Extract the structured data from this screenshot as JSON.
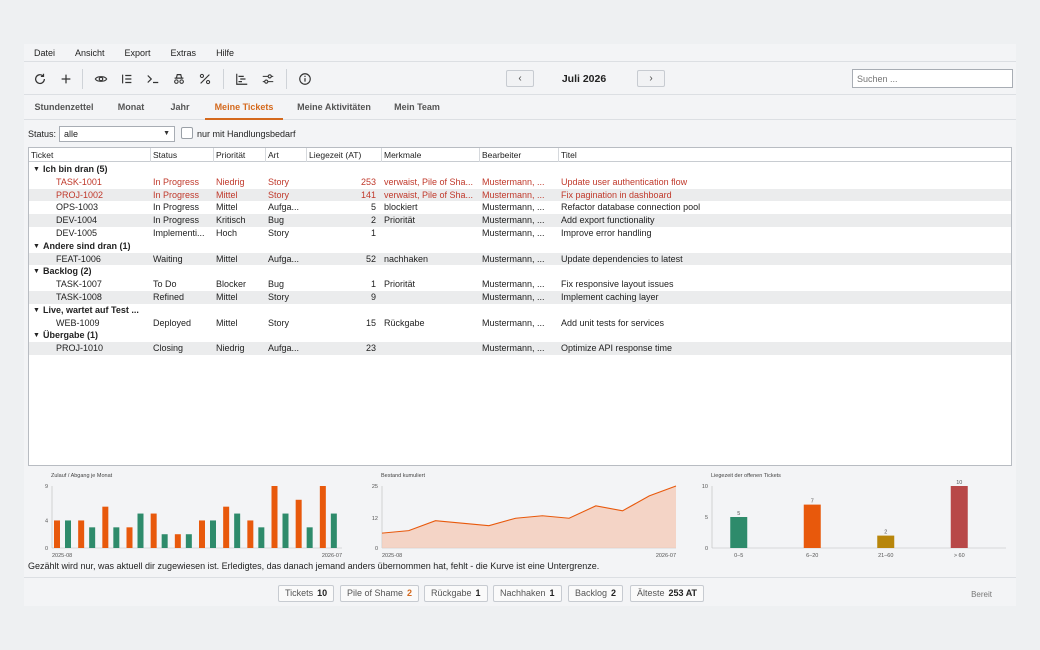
{
  "menu": [
    "Datei",
    "Ansicht",
    "Export",
    "Extras",
    "Hilfe"
  ],
  "toolbar": {
    "icons": [
      "refresh-icon",
      "add-icon",
      "eye-icon",
      "list-icon",
      "terminal-icon",
      "incognito-icon",
      "percent-icon",
      "gantt-icon",
      "sliders-icon",
      "info-icon"
    ],
    "prev_label": "‹",
    "next_label": "›",
    "month": "Juli 2026",
    "search_placeholder": "Suchen ..."
  },
  "tabs": [
    {
      "label": "Stundenzettel",
      "active": false
    },
    {
      "label": "Monat",
      "active": false
    },
    {
      "label": "Jahr",
      "active": false
    },
    {
      "label": "Meine Tickets",
      "active": true
    },
    {
      "label": "Meine Aktivitäten",
      "active": false
    },
    {
      "label": "Mein Team",
      "active": false
    }
  ],
  "filter": {
    "status_label": "Status:",
    "status_value": "alle",
    "checkbox_label": "nur mit Handlungsbedarf"
  },
  "table": {
    "columns": [
      "Ticket",
      "Status",
      "Priorität",
      "Art",
      "Liegezeit (AT)",
      "Merkmale",
      "Bearbeiter",
      "Titel"
    ],
    "rows": [
      {
        "group": "Ich bin dran  (5)"
      },
      {
        "ticket": "TASK-1001",
        "status": "In Progress",
        "prio": "Niedrig",
        "art": "Story",
        "age": "253",
        "merk": "verwaist, Pile of Sha...",
        "bearb": "Mustermann, ...",
        "titel": "Update user authentication flow",
        "red": true
      },
      {
        "ticket": "PROJ-1002",
        "status": "In Progress",
        "prio": "Mittel",
        "art": "Story",
        "age": "141",
        "merk": "verwaist, Pile of Sha...",
        "bearb": "Mustermann, ...",
        "titel": "Fix pagination in dashboard",
        "red": true
      },
      {
        "ticket": "OPS-1003",
        "status": "In Progress",
        "prio": "Mittel",
        "art": "Aufga...",
        "age": "5",
        "merk": "blockiert",
        "bearb": "Mustermann, ...",
        "titel": "Refactor database connection pool"
      },
      {
        "ticket": "DEV-1004",
        "status": "In Progress",
        "prio": "Kritisch",
        "art": "Bug",
        "age": "2",
        "merk": "Priorität",
        "bearb": "Mustermann, ...",
        "titel": "Add export functionality"
      },
      {
        "ticket": "DEV-1005",
        "status": "Implementi...",
        "prio": "Hoch",
        "art": "Story",
        "age": "1",
        "merk": "",
        "bearb": "Mustermann, ...",
        "titel": "Improve error handling"
      },
      {
        "group": "Andere sind dran  (1)"
      },
      {
        "ticket": "FEAT-1006",
        "status": "Waiting",
        "prio": "Mittel",
        "art": "Aufga...",
        "age": "52",
        "merk": "nachhaken",
        "bearb": "Mustermann, ...",
        "titel": "Update dependencies to latest"
      },
      {
        "group": "Backlog  (2)"
      },
      {
        "ticket": "TASK-1007",
        "status": "To Do",
        "prio": "Blocker",
        "art": "Bug",
        "age": "1",
        "merk": "Priorität",
        "bearb": "Mustermann, ...",
        "titel": "Fix responsive layout issues"
      },
      {
        "ticket": "TASK-1008",
        "status": "Refined",
        "prio": "Mittel",
        "art": "Story",
        "age": "9",
        "merk": "",
        "bearb": "Mustermann, ...",
        "titel": "Implement caching layer"
      },
      {
        "group": "Live, wartet auf Test ..."
      },
      {
        "ticket": "WEB-1009",
        "status": "Deployed",
        "prio": "Mittel",
        "art": "Story",
        "age": "15",
        "merk": "Rückgabe",
        "bearb": "Mustermann, ...",
        "titel": "Add unit tests for services"
      },
      {
        "group": "Übergabe  (1)"
      },
      {
        "ticket": "PROJ-1010",
        "status": "Closing",
        "prio": "Niedrig",
        "art": "Aufga...",
        "age": "23",
        "merk": "",
        "bearb": "Mustermann, ...",
        "titel": "Optimize API response time"
      }
    ]
  },
  "colors": {
    "orange": "#e8590c",
    "green": "#2e8b6b",
    "red_text": "#c0392b",
    "accent": "#d4691d",
    "area_fill": "#f4c9b6",
    "bar_ocher": "#b8860b",
    "bar_red": "#b84848"
  },
  "chart_data": [
    {
      "type": "bar",
      "title": "Zulauf / Abgang je Monat",
      "x_start": "2025-08",
      "x_end": "2026-07",
      "ylim": [
        0,
        9
      ],
      "yticks": [
        0,
        4,
        9
      ],
      "series": [
        {
          "values": [
            4,
            4,
            6,
            3,
            5,
            2,
            4,
            6,
            4,
            9,
            7,
            9
          ]
        },
        {
          "values": [
            4,
            3,
            3,
            5,
            2,
            2,
            4,
            5,
            3,
            5,
            3,
            5
          ]
        }
      ]
    },
    {
      "type": "area",
      "title": "Bestand kumuliert",
      "x_start": "2025-08",
      "x_end": "2026-07",
      "ylim": [
        0,
        25
      ],
      "yticks": [
        0,
        12,
        25
      ],
      "values": [
        6,
        7,
        11,
        10,
        9,
        12,
        13,
        12,
        17,
        15,
        21,
        25
      ]
    },
    {
      "type": "bar",
      "title": "Liegezeit der offenen Tickets",
      "categories": [
        "0–5",
        "6–20",
        "21–60",
        "> 60"
      ],
      "values": [
        5,
        7,
        2,
        10
      ],
      "ylim": [
        0,
        10
      ],
      "yticks": [
        0,
        5,
        10
      ]
    }
  ],
  "note": "Gezählt wird nur, was aktuell dir zugewiesen ist. Erledigtes, das danach jemand anders übernommen hat, fehlt - die Kurve ist eine Untergrenze.",
  "status_chips": [
    {
      "label": "Tickets",
      "value": "10",
      "orange": false
    },
    {
      "label": "Pile of Shame",
      "value": "2",
      "orange": true
    },
    {
      "label": "Rückgabe",
      "value": "1",
      "orange": false
    },
    {
      "label": "Nachhaken",
      "value": "1",
      "orange": false
    },
    {
      "label": "Backlog",
      "value": "2",
      "orange": false
    },
    {
      "label": "Älteste",
      "value": "253 AT",
      "orange": false
    }
  ],
  "status_text": "Bereit"
}
